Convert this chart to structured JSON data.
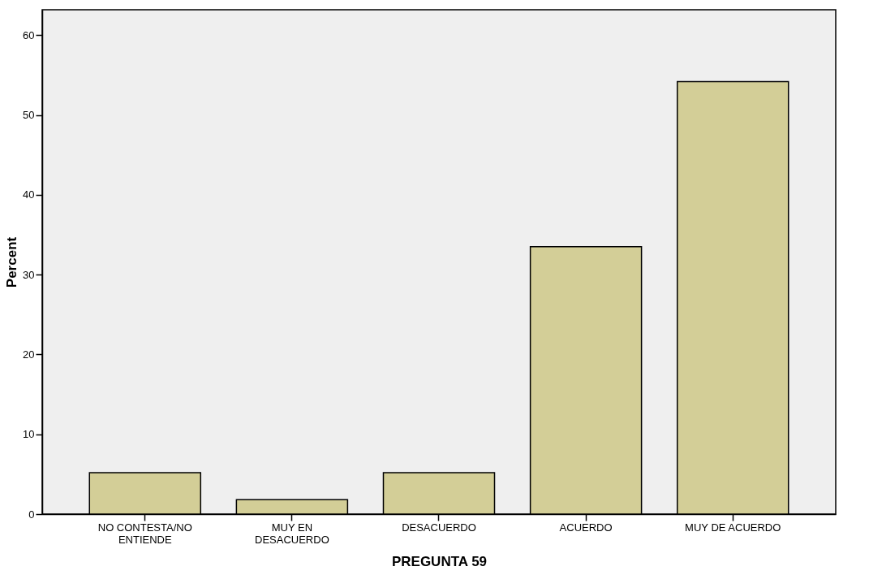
{
  "chart_data": {
    "type": "bar",
    "categories": [
      "NO CONTESTA/NO ENTIENDE",
      "MUY EN DESACUERDO",
      "DESACUERDO",
      "ACUERDO",
      "MUY DE ACUERDO"
    ],
    "values": [
      5.2,
      1.8,
      5.2,
      33.5,
      54.2
    ],
    "color": "#d3ce97",
    "xlabel": "PREGUNTA 59",
    "ylabel": "Percent",
    "ylim": [
      0,
      63.2
    ],
    "yticks": [
      0,
      10,
      20,
      30,
      40,
      50,
      60
    ],
    "grid": false
  }
}
